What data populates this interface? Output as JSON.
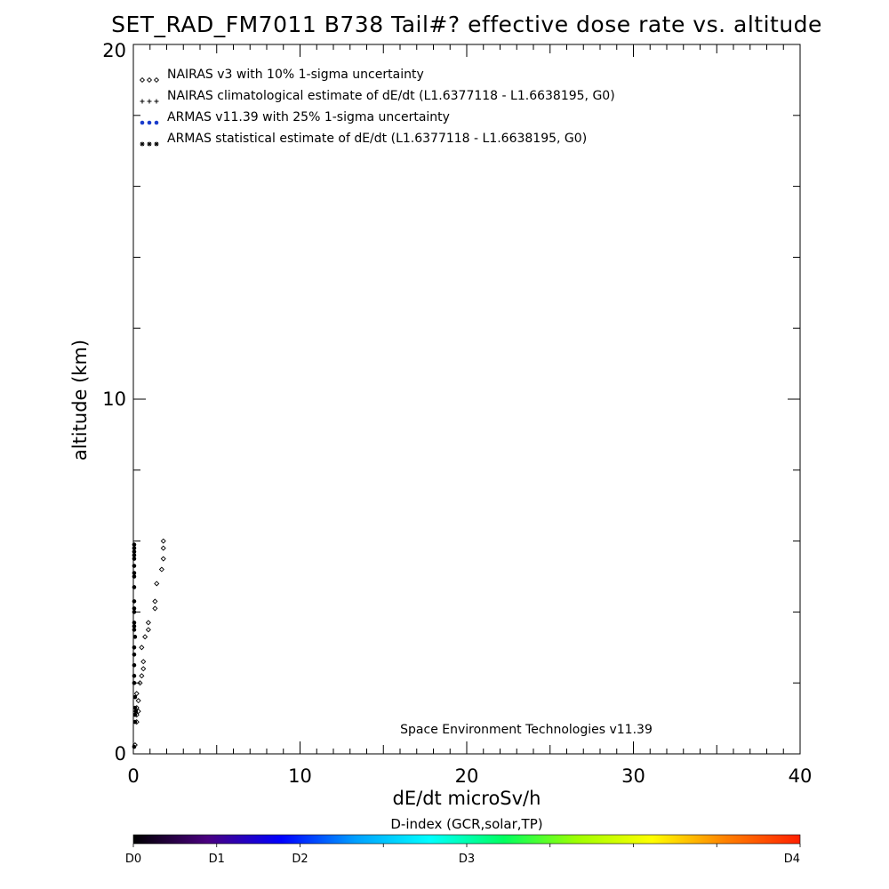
{
  "chart_data": {
    "type": "scatter",
    "title": "SET_RAD_FM7011  B738 Tail#? effective dose rate vs. altitude",
    "xlabel": "dE/dt microSv/h",
    "ylabel": "altitude (km)",
    "xlim": [
      0,
      40
    ],
    "ylim": [
      0,
      20
    ],
    "x_ticks": [
      "0",
      "10",
      "20",
      "30",
      "40"
    ],
    "y_ticks": [
      "0",
      "10",
      "20"
    ],
    "legend_position": "top-left",
    "legend": [
      {
        "label": "NAIRAS v3 with 10% 1-sigma uncertainty",
        "symbol": "diamond",
        "color": "#000000"
      },
      {
        "label": "NAIRAS climatological estimate of dE/dt (L1.6377118 - L1.6638195, G0)",
        "symbol": "plus",
        "color": "#000000"
      },
      {
        "label": "ARMAS v11.39 with 25% 1-sigma uncertainty",
        "symbol": "dot",
        "color": "#1a3ccc"
      },
      {
        "label": "ARMAS statistical estimate of dE/dt (L1.6377118 - L1.6638195, G0)",
        "symbol": "asterisk",
        "color": "#000000"
      }
    ],
    "credit": "Space Environment Technologies v11.39",
    "series": [
      {
        "name": "NAIRAS v3 with 10% 1-sigma uncertainty",
        "symbol": "diamond",
        "points": [
          [
            0.1,
            0.25
          ],
          [
            0.2,
            0.9
          ],
          [
            0.2,
            1.1
          ],
          [
            0.3,
            1.2
          ],
          [
            0.2,
            1.3
          ],
          [
            0.3,
            1.5
          ],
          [
            0.2,
            1.7
          ],
          [
            0.4,
            2.0
          ],
          [
            0.5,
            2.2
          ],
          [
            0.6,
            2.4
          ],
          [
            0.6,
            2.6
          ],
          [
            0.5,
            3.0
          ],
          [
            0.7,
            3.3
          ],
          [
            0.9,
            3.5
          ],
          [
            0.9,
            3.7
          ],
          [
            1.3,
            4.1
          ],
          [
            1.3,
            4.3
          ],
          [
            1.4,
            4.8
          ],
          [
            1.7,
            5.2
          ],
          [
            1.8,
            5.5
          ],
          [
            1.8,
            5.8
          ],
          [
            1.8,
            6.0
          ]
        ]
      },
      {
        "name": "ARMAS statistical estimate of dE/dt (L1.6377118 - L1.6638195, G0)",
        "symbol": "dot",
        "points": [
          [
            0.05,
            0.2
          ],
          [
            0.1,
            0.9
          ],
          [
            0.1,
            1.1
          ],
          [
            0.15,
            1.2
          ],
          [
            0.1,
            1.3
          ],
          [
            0.1,
            1.6
          ],
          [
            0.05,
            2.0
          ],
          [
            0.05,
            2.2
          ],
          [
            0.05,
            2.5
          ],
          [
            0.05,
            2.8
          ],
          [
            0.05,
            3.0
          ],
          [
            0.1,
            3.3
          ],
          [
            0.05,
            3.5
          ],
          [
            0.05,
            3.6
          ],
          [
            0.05,
            3.7
          ],
          [
            0.05,
            4.0
          ],
          [
            0.05,
            4.1
          ],
          [
            0.05,
            4.3
          ],
          [
            0.05,
            4.7
          ],
          [
            0.05,
            5.0
          ],
          [
            0.05,
            5.1
          ],
          [
            0.05,
            5.3
          ],
          [
            0.05,
            5.5
          ],
          [
            0.05,
            5.6
          ],
          [
            0.05,
            5.7
          ],
          [
            0.05,
            5.8
          ],
          [
            0.05,
            5.9
          ]
        ]
      }
    ],
    "colorbar": {
      "title": "D-index (GCR,solar,TP)",
      "range": [
        0,
        4
      ],
      "labels": [
        {
          "text": "D0",
          "value": 0
        },
        {
          "text": "D1",
          "value": 0.5
        },
        {
          "text": "D2",
          "value": 1
        },
        {
          "text": "D3",
          "value": 2
        },
        {
          "text": "D4",
          "value": 4
        }
      ],
      "stops": [
        "#000000",
        "#4a0080",
        "#0000ff",
        "#00a0ff",
        "#00ffff",
        "#00ff60",
        "#a0ff00",
        "#ffff00",
        "#ff8000",
        "#ff2000"
      ]
    }
  }
}
